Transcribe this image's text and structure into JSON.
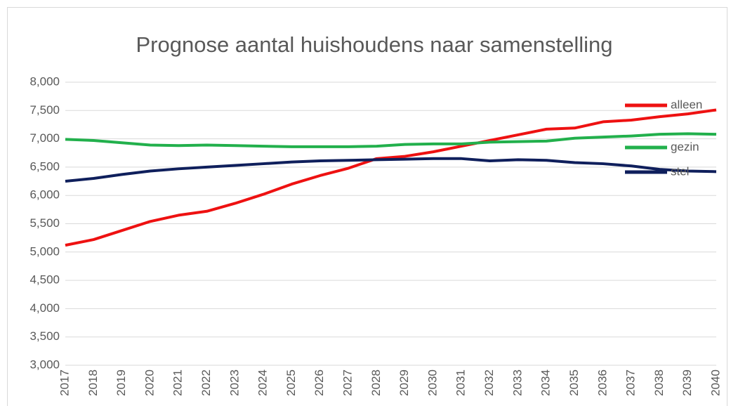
{
  "chart_data": {
    "type": "line",
    "title": "Prognose aantal huishoudens naar samenstelling",
    "categories": [
      "2017",
      "2018",
      "2019",
      "2020",
      "2021",
      "2022",
      "2023",
      "2024",
      "2025",
      "2026",
      "2027",
      "2028",
      "2029",
      "2030",
      "2031",
      "2032",
      "2033",
      "2034",
      "2035",
      "2036",
      "2037",
      "2038",
      "2039",
      "2040"
    ],
    "series": [
      {
        "name": "alleen",
        "color": "#ee1111",
        "values": [
          5120,
          5220,
          5380,
          5540,
          5650,
          5720,
          5860,
          6020,
          6200,
          6350,
          6480,
          6650,
          6690,
          6770,
          6870,
          6970,
          7070,
          7170,
          7190,
          7300,
          7330,
          7390,
          7440,
          7510
        ]
      },
      {
        "name": "gezin",
        "color": "#22b04c",
        "values": [
          6990,
          6970,
          6930,
          6890,
          6880,
          6890,
          6880,
          6870,
          6860,
          6860,
          6860,
          6870,
          6900,
          6910,
          6910,
          6940,
          6950,
          6960,
          7010,
          7030,
          7050,
          7080,
          7090,
          7080
        ]
      },
      {
        "name": "stel",
        "color": "#0f1f5c",
        "values": [
          6250,
          6300,
          6370,
          6430,
          6470,
          6500,
          6530,
          6560,
          6590,
          6610,
          6620,
          6630,
          6640,
          6650,
          6650,
          6610,
          6630,
          6620,
          6580,
          6560,
          6520,
          6460,
          6430,
          6420
        ]
      }
    ],
    "ylim": [
      3000,
      8000
    ],
    "yticks": [
      {
        "value": 3000,
        "label": "3,000"
      },
      {
        "value": 3500,
        "label": "3,500"
      },
      {
        "value": 4000,
        "label": "4,000"
      },
      {
        "value": 4500,
        "label": "4,500"
      },
      {
        "value": 5000,
        "label": "5,000"
      },
      {
        "value": 5500,
        "label": "5,500"
      },
      {
        "value": 6000,
        "label": "6,000"
      },
      {
        "value": 6500,
        "label": "6,500"
      },
      {
        "value": 7000,
        "label": "7,000"
      },
      {
        "value": 7500,
        "label": "7,500"
      },
      {
        "value": 8000,
        "label": "8,000"
      }
    ],
    "grid": true,
    "legend": "right"
  }
}
